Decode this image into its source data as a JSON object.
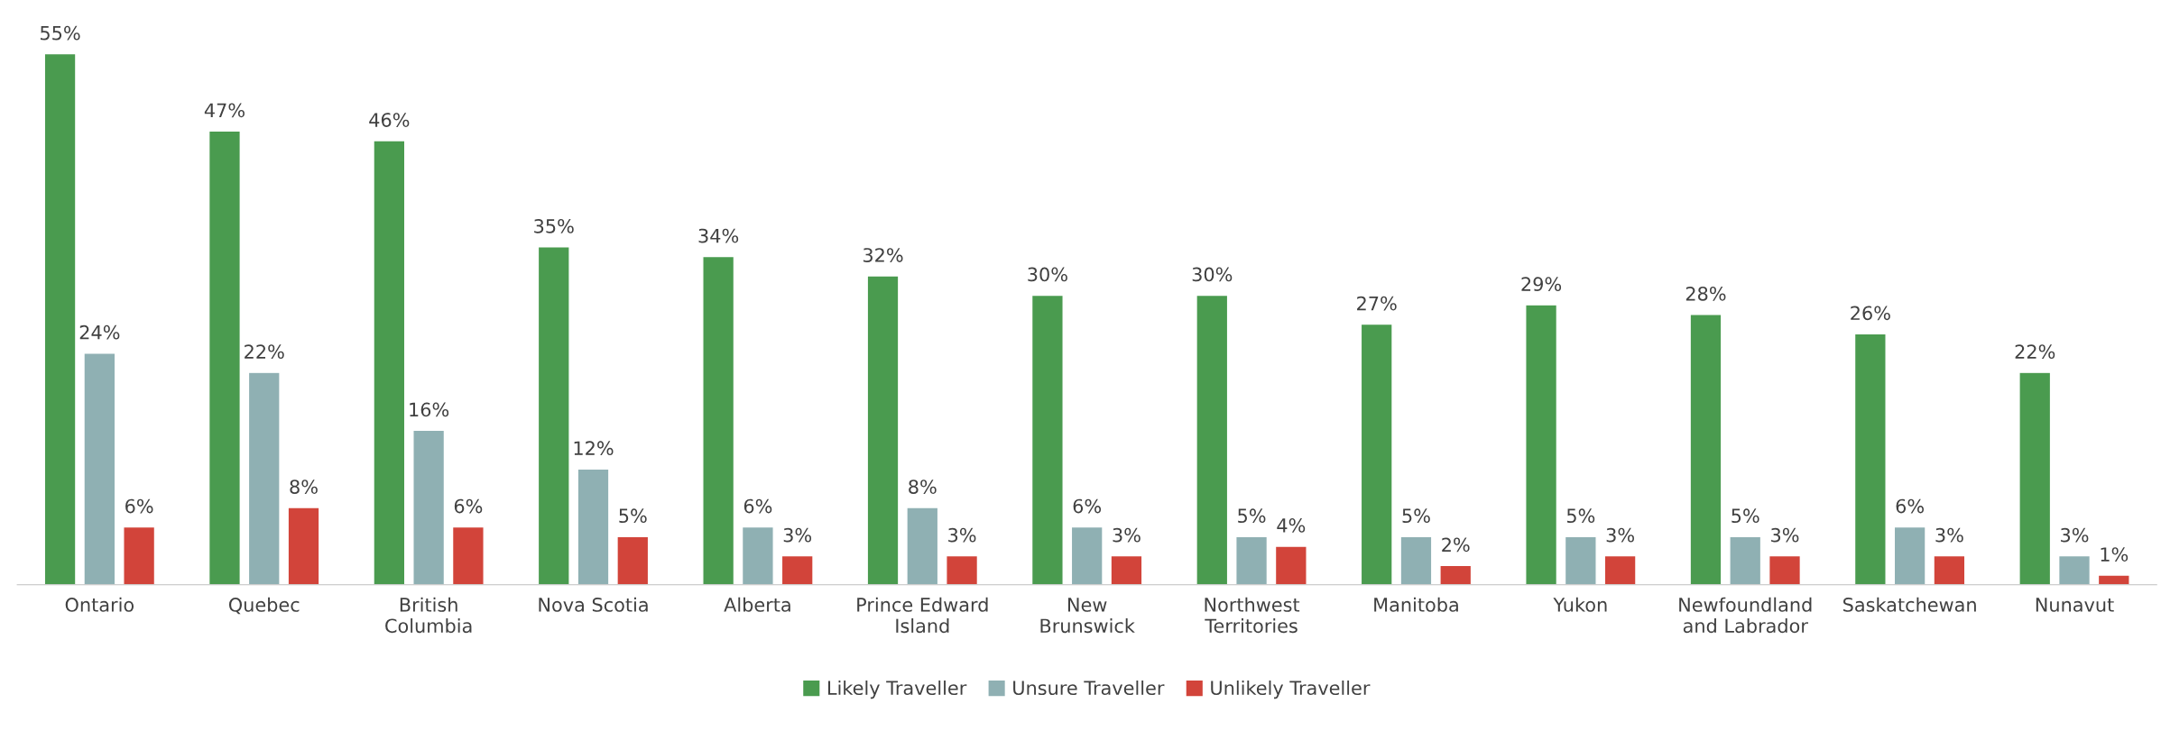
{
  "chart_data": {
    "type": "bar",
    "categories": [
      "Ontario",
      "Quebec",
      "British\nColumbia",
      "Nova Scotia",
      "Alberta",
      "Prince Edward\nIsland",
      "New\nBrunswick",
      "Northwest\nTerritories",
      "Manitoba",
      "Yukon",
      "Newfoundland\nand Labrador",
      "Saskatchewan",
      "Nunavut"
    ],
    "series": [
      {
        "name": "Likely Traveller",
        "color": "#4a9b4f",
        "values": [
          55,
          47,
          46,
          35,
          34,
          32,
          30,
          30,
          27,
          29,
          28,
          26,
          22
        ],
        "value_labels": [
          "55%",
          "47%",
          "46%",
          "35%",
          "34%",
          "32%",
          "30%",
          "30%",
          "27%",
          "29%",
          "28%",
          "26%",
          "22%"
        ]
      },
      {
        "name": "Unsure Traveller",
        "color": "#8fb0b3",
        "values": [
          24,
          22,
          16,
          12,
          6,
          8,
          6,
          5,
          5,
          5,
          5,
          6,
          3
        ],
        "value_labels": [
          "24%",
          "22%",
          "16%",
          "12%",
          "6%",
          "8%",
          "6%",
          "5%",
          "5%",
          "5%",
          "5%",
          "6%",
          "3%"
        ]
      },
      {
        "name": "Unlikely Traveller",
        "color": "#d2443a",
        "values": [
          6,
          8,
          6,
          5,
          3,
          3,
          3,
          4,
          2,
          3,
          3,
          3,
          1
        ],
        "value_labels": [
          "6%",
          "8%",
          "6%",
          "5%",
          "3%",
          "3%",
          "3%",
          "4%",
          "2%",
          "3%",
          "3%",
          "3%",
          "1%"
        ]
      }
    ],
    "legend": "bottom",
    "grid": false
  }
}
